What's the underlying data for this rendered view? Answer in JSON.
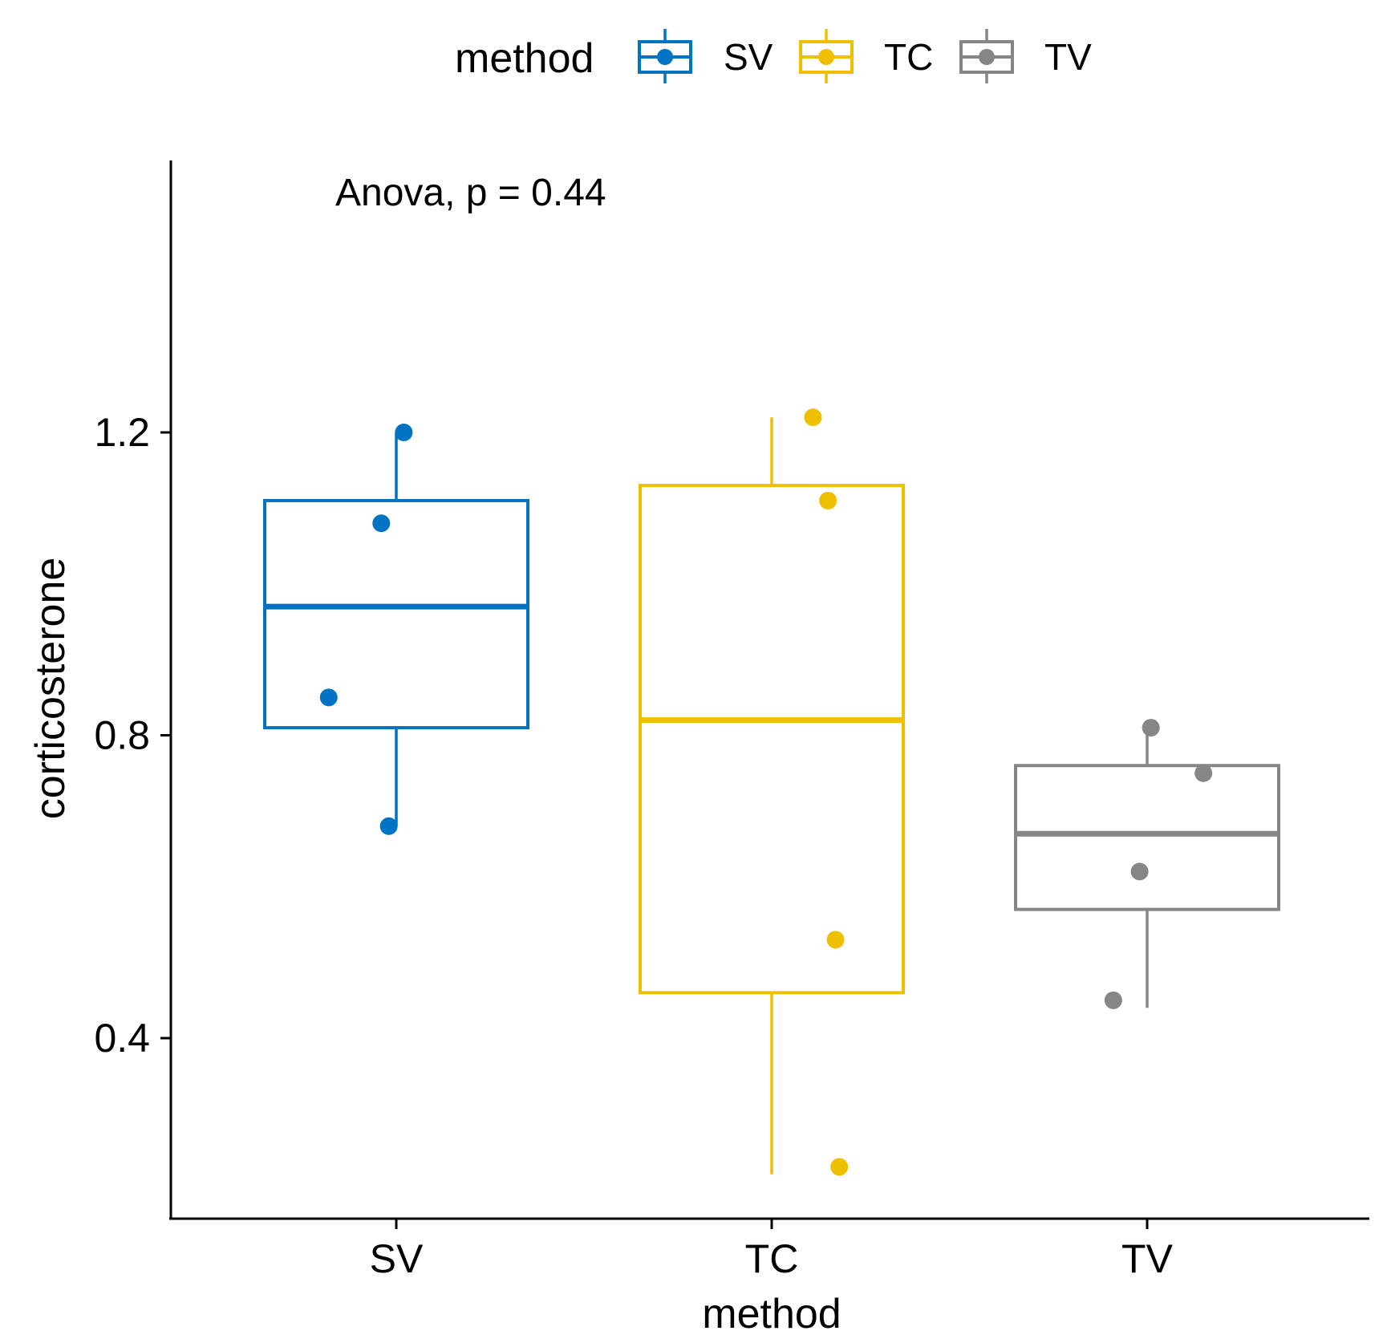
{
  "chart_data": {
    "type": "boxplot",
    "xlabel": "method",
    "ylabel": "corticosterone",
    "ylim": [
      0.16,
      1.55
    ],
    "yticks": [
      0.4,
      0.8,
      1.2
    ],
    "y_tick_labels": [
      "0.4",
      "0.8",
      "1.2"
    ],
    "categories": [
      "SV",
      "TC",
      "TV"
    ],
    "annotation": "Anova, p = 0.44",
    "legend": {
      "title": "method",
      "position": "top",
      "entries": [
        "SV",
        "TC",
        "TV"
      ]
    },
    "series": [
      {
        "name": "SV",
        "color": "#0073C2",
        "whisker_low": 0.68,
        "q1": 0.81,
        "median": 0.97,
        "q3": 1.11,
        "whisker_high": 1.2,
        "points": [
          {
            "jitter": 0.02,
            "value": 1.2
          },
          {
            "jitter": -0.04,
            "value": 1.08
          },
          {
            "jitter": -0.18,
            "value": 0.85
          },
          {
            "jitter": -0.02,
            "value": 0.68
          }
        ]
      },
      {
        "name": "TC",
        "color": "#EFC000",
        "whisker_low": 0.22,
        "q1": 0.46,
        "median": 0.82,
        "q3": 1.13,
        "whisker_high": 1.22,
        "points": [
          {
            "jitter": 0.11,
            "value": 1.22
          },
          {
            "jitter": 0.15,
            "value": 1.11
          },
          {
            "jitter": 0.17,
            "value": 0.53
          },
          {
            "jitter": 0.18,
            "value": 0.23
          }
        ]
      },
      {
        "name": "TV",
        "color": "#868686",
        "whisker_low": 0.44,
        "q1": 0.57,
        "median": 0.67,
        "q3": 0.76,
        "whisker_high": 0.81,
        "points": [
          {
            "jitter": 0.01,
            "value": 0.81
          },
          {
            "jitter": 0.15,
            "value": 0.75
          },
          {
            "jitter": -0.02,
            "value": 0.62
          },
          {
            "jitter": -0.09,
            "value": 0.45
          }
        ]
      }
    ]
  }
}
